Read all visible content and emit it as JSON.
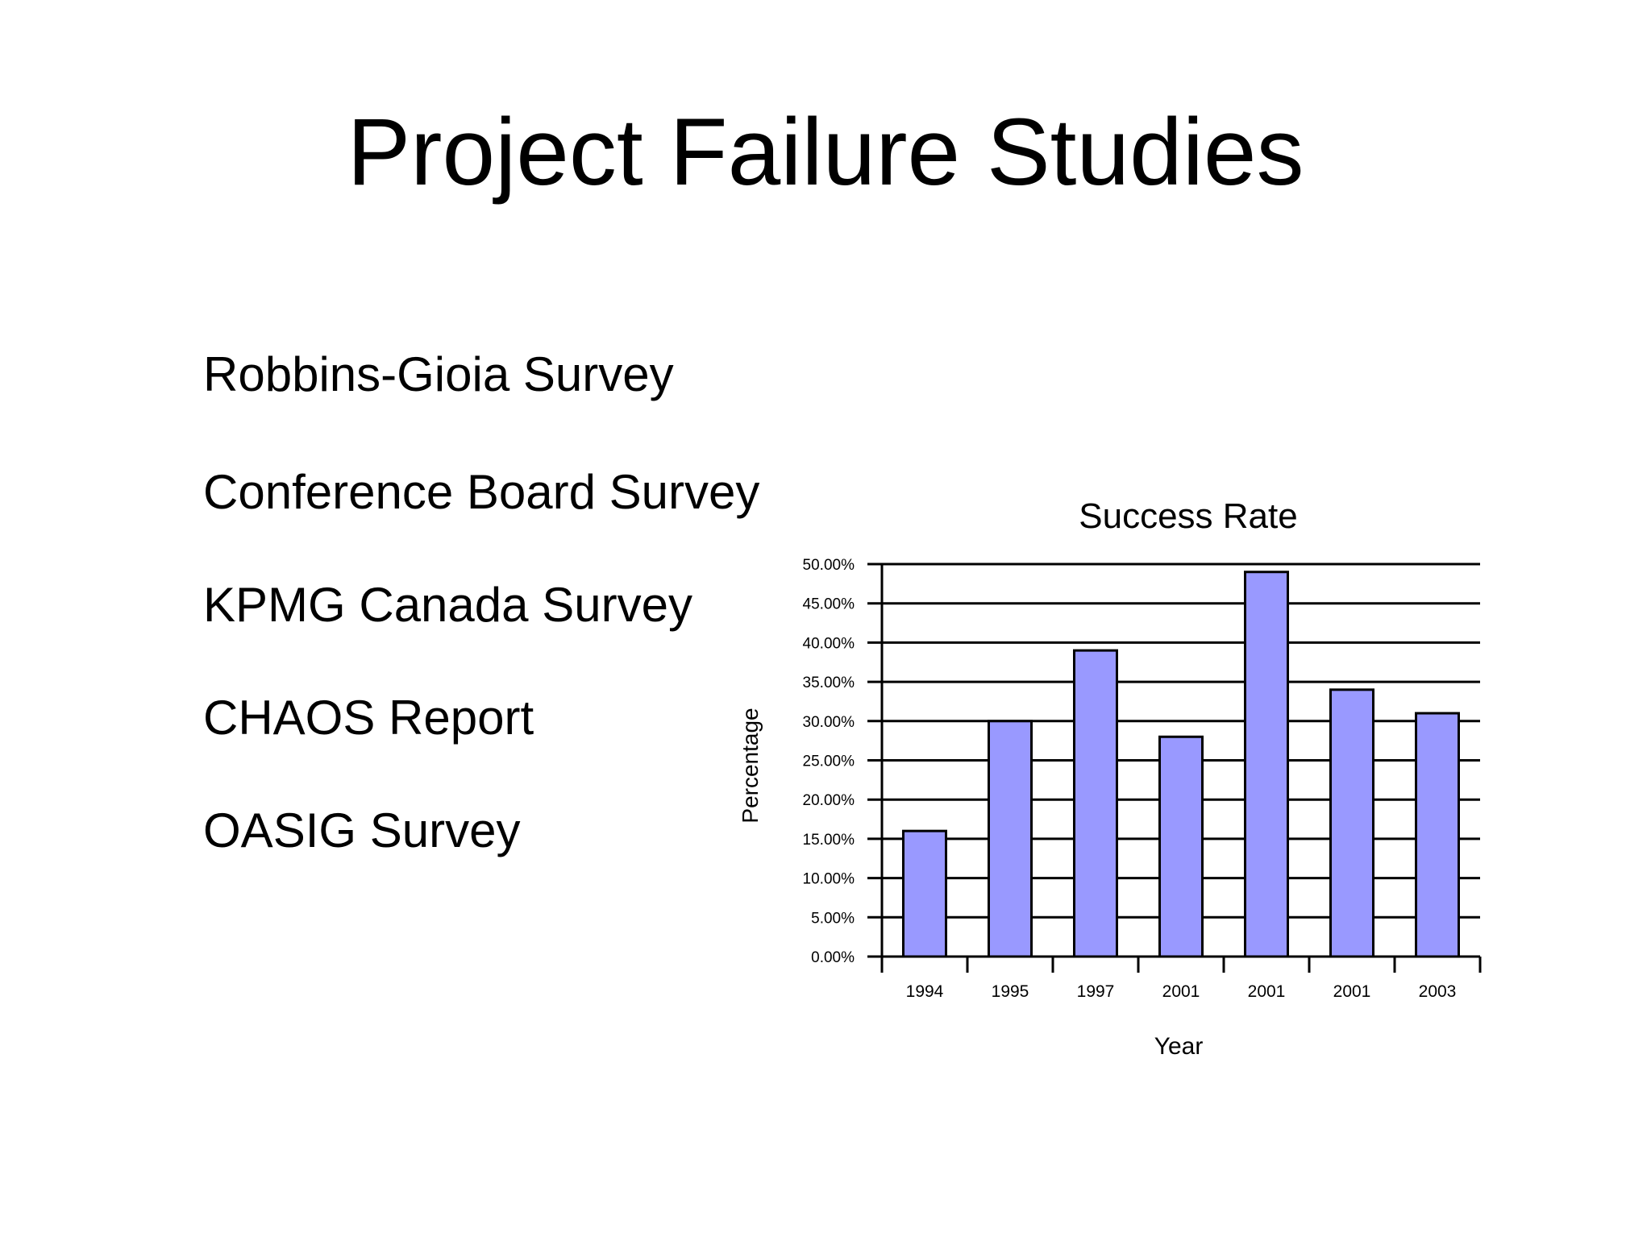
{
  "slide": {
    "title": "Project Failure Studies",
    "surveys": [
      "Robbins-Gioia Survey",
      "Conference Board Survey",
      "KPMG Canada Survey",
      "CHAOS Report",
      "OASIG Survey"
    ]
  },
  "chart_data": {
    "type": "bar",
    "title": "Success Rate",
    "xlabel": "Year",
    "ylabel": "Percentage",
    "categories": [
      "1994",
      "1995",
      "1997",
      "2001",
      "2001",
      "2001",
      "2003"
    ],
    "values": [
      16,
      30,
      39,
      28,
      49,
      34,
      31
    ],
    "ylim": [
      0,
      50
    ],
    "yticks": [
      "0.00%",
      "5.00%",
      "10.00%",
      "15.00%",
      "20.00%",
      "25.00%",
      "30.00%",
      "35.00%",
      "40.00%",
      "45.00%",
      "50.00%"
    ],
    "grid": true,
    "legend": "none",
    "bar_color": "#9999ff",
    "edge_color": "#000000"
  }
}
